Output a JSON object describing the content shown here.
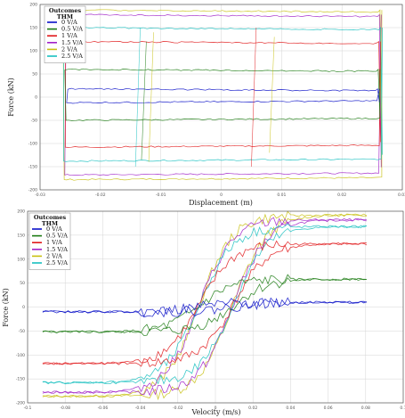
{
  "chart_data": [
    {
      "type": "line",
      "xlabel": "Displacement (m)",
      "ylabel": "Force (kN)",
      "xlim": [
        -0.03,
        0.03
      ],
      "ylim": [
        -200,
        200
      ],
      "xticks": [
        "-0.03",
        "-0.02",
        "-0.01",
        "0",
        "0.01",
        "0.02",
        "0.03"
      ],
      "yticks": [
        "200",
        "150",
        "100",
        "50",
        "0",
        "-50",
        "-100",
        "-150",
        "-200"
      ],
      "grid": true,
      "legend": {
        "title": "Outcomes THM",
        "placement": "top-left"
      },
      "series": [
        {
          "name": "0 V/A",
          "color": "#0a10c8",
          "force_upper": 18,
          "force_lower": -12
        },
        {
          "name": "0.5 V/A",
          "color": "#1a7a10",
          "force_upper": 60,
          "force_lower": -50
        },
        {
          "name": "1 V/A",
          "color": "#e0181a",
          "force_upper": 120,
          "force_lower": -108
        },
        {
          "name": "1.5 V/A",
          "color": "#a020c8",
          "force_upper": 178,
          "force_lower": -168
        },
        {
          "name": "2 V/A",
          "color": "#c8c010",
          "force_upper": 188,
          "force_lower": -178
        },
        {
          "name": "2.5 V/A",
          "color": "#18c0c0",
          "force_upper": 150,
          "force_lower": -138
        }
      ]
    },
    {
      "type": "line",
      "xlabel": "Velocity (m/s)",
      "ylabel": "Force (kN)",
      "xlim": [
        -0.1,
        0.1
      ],
      "ylim": [
        -200,
        200
      ],
      "xticks": [
        "-0.1",
        "-0.08",
        "-0.06",
        "-0.04",
        "-0.02",
        "0",
        "0.02",
        "0.04",
        "0.06",
        "0.08",
        "0.1"
      ],
      "yticks": [
        "200",
        "150",
        "100",
        "50",
        "0",
        "-50",
        "-100",
        "-150",
        "-200"
      ],
      "grid": true,
      "legend": {
        "title": "Outcomes THM",
        "placement": "top-left"
      },
      "series": [
        {
          "name": "0 V/A",
          "color": "#0a10c8",
          "force_at_vmax": 10,
          "force_at_vmin": -10
        },
        {
          "name": "0.5 V/A",
          "color": "#1a7a10",
          "force_at_vmax": 58,
          "force_at_vmin": -52
        },
        {
          "name": "1 V/A",
          "color": "#e0181a",
          "force_at_vmax": 132,
          "force_at_vmin": -118
        },
        {
          "name": "1.5 V/A",
          "color": "#a020c8",
          "force_at_vmax": 182,
          "force_at_vmin": -178
        },
        {
          "name": "2 V/A",
          "color": "#c8c010",
          "force_at_vmax": 192,
          "force_at_vmin": -186
        },
        {
          "name": "2.5 V/A",
          "color": "#18c0c0",
          "force_at_vmax": 168,
          "force_at_vmin": -158
        }
      ]
    }
  ]
}
